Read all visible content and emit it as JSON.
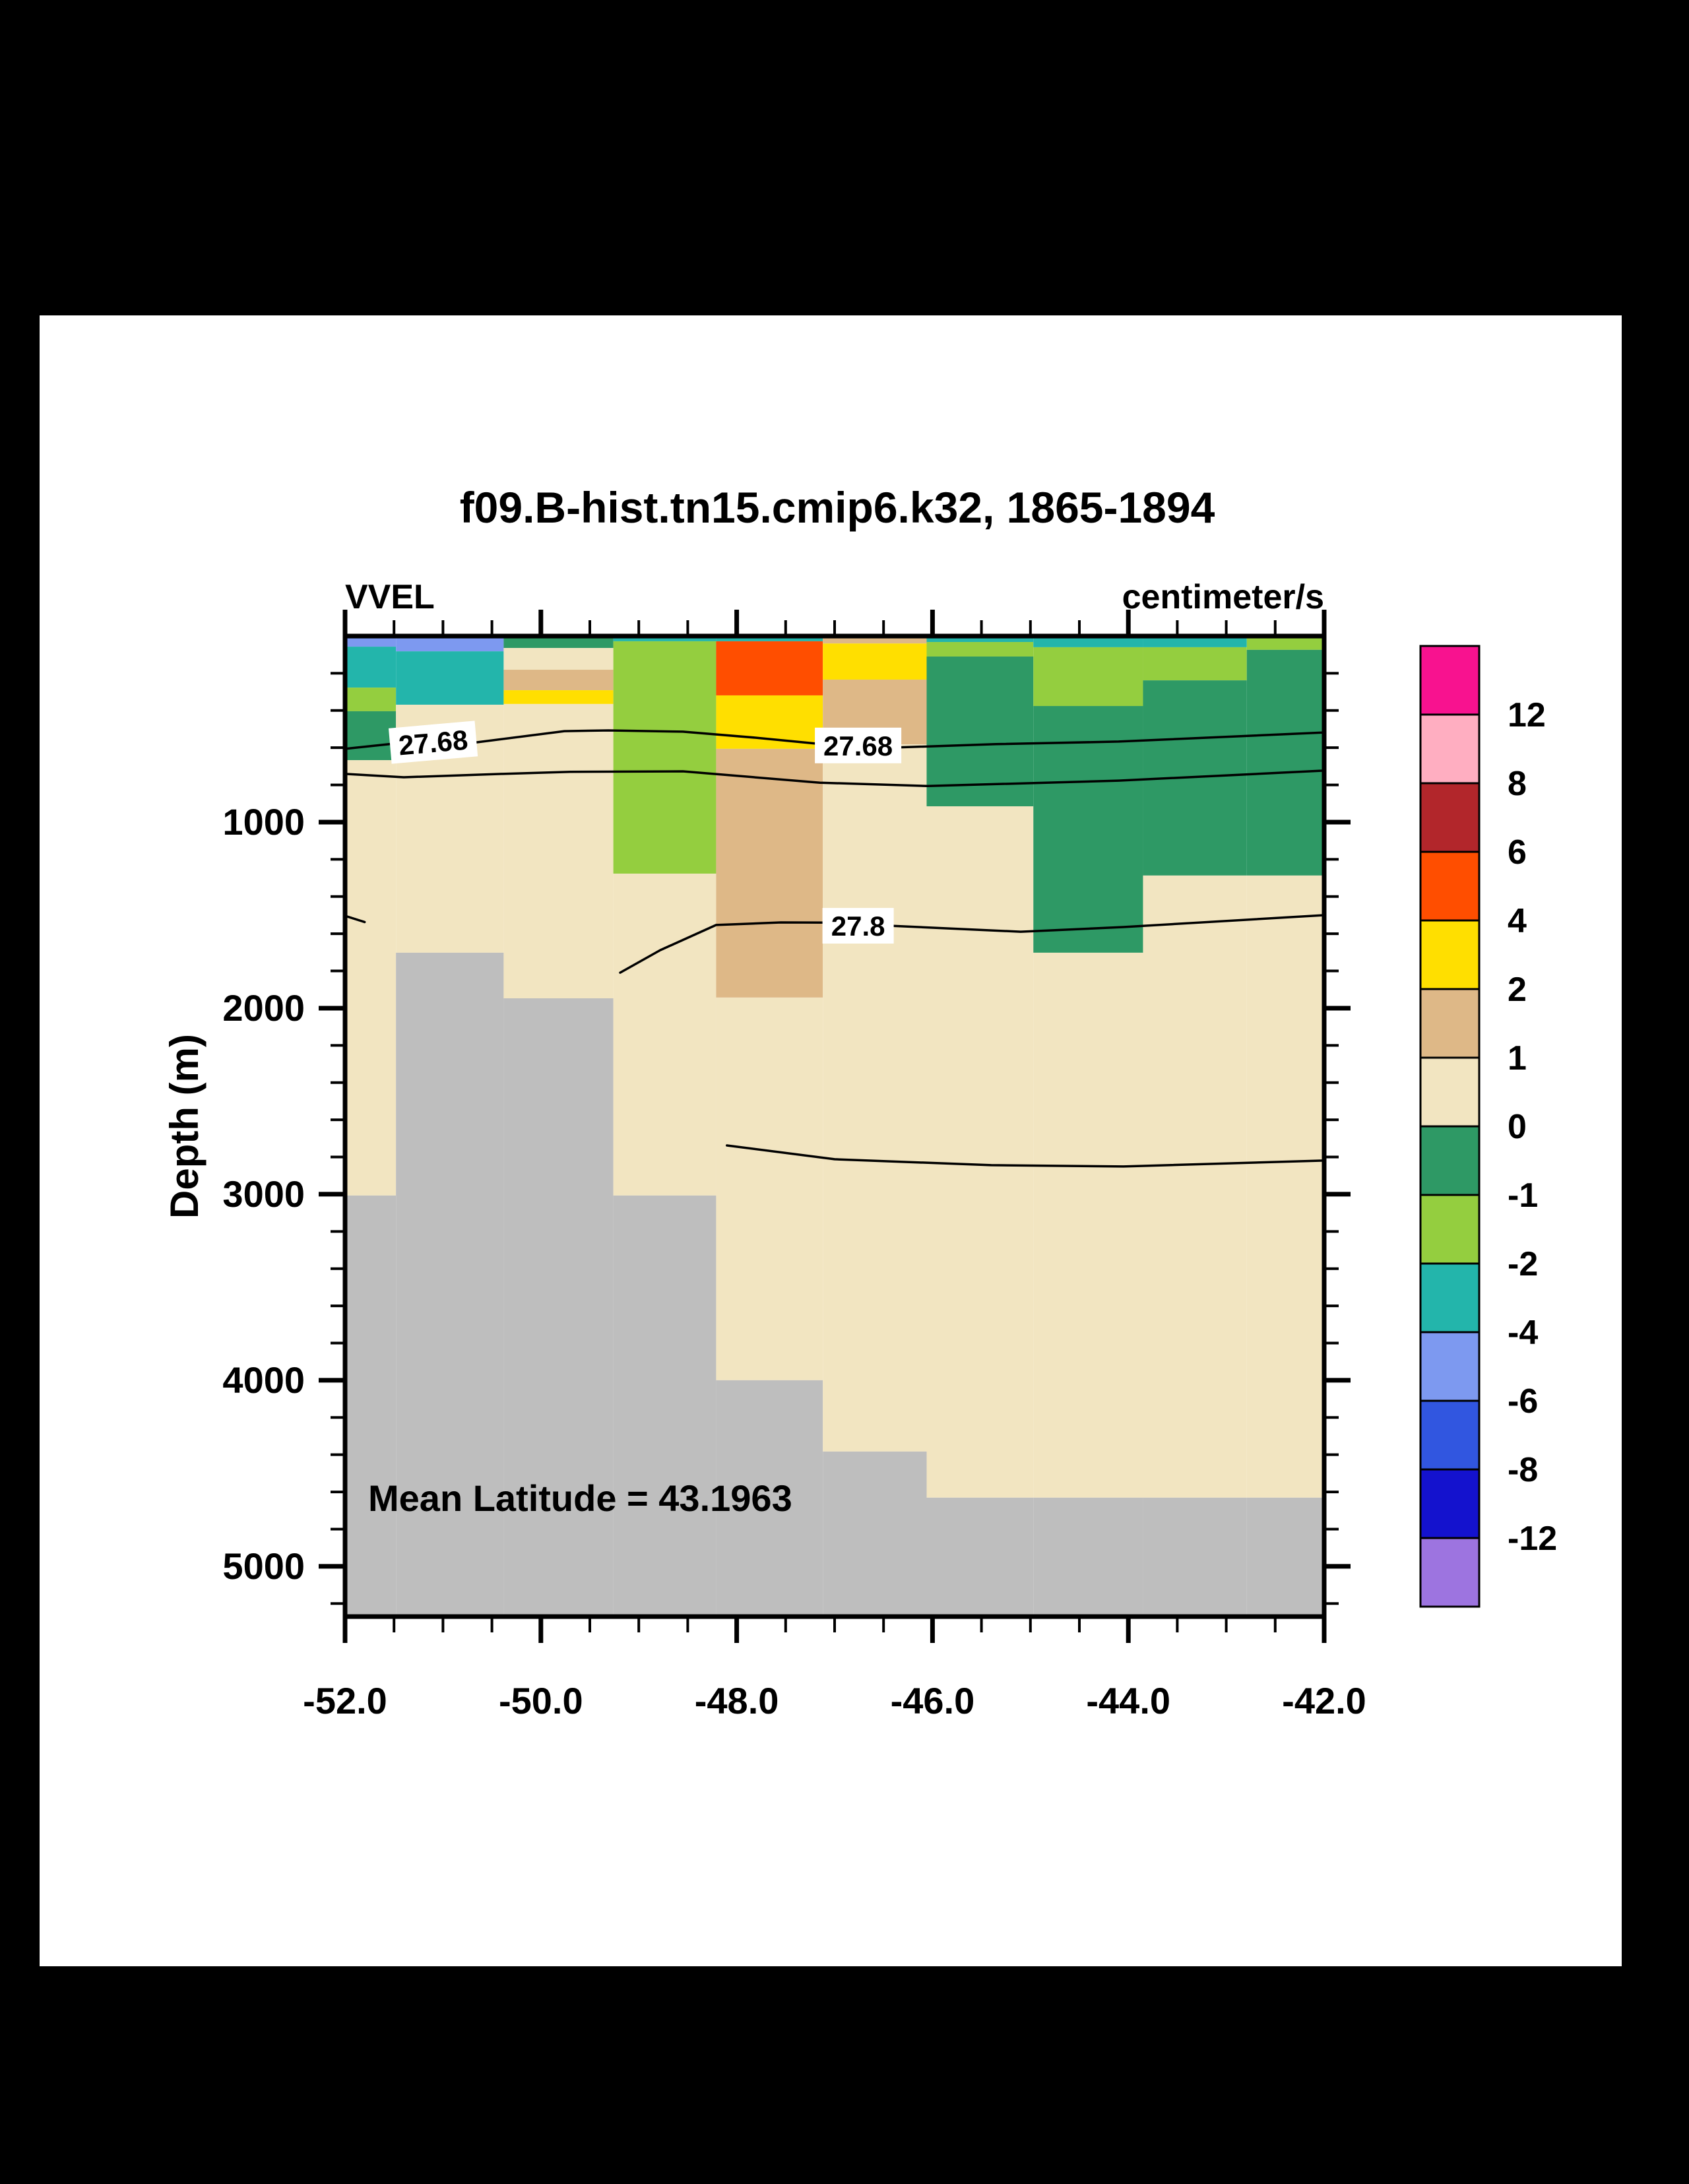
{
  "page": {
    "background_color": "#000000",
    "paper_color": "#ffffff"
  },
  "chart_data": {
    "type": "heatmap",
    "title": "f09.B-hist.tn15.cmip6.k32, 1865-1894",
    "left_label": "VVEL",
    "right_label": "centimeter/s",
    "ylabel": "Depth (m)",
    "annotation": "Mean Latitude = 43.1963",
    "xlim": [
      -52.0,
      -42.0
    ],
    "ylim": [
      0,
      5270
    ],
    "x_major_ticks": [
      -52.0,
      -50.0,
      -48.0,
      -46.0,
      -44.0,
      -42.0
    ],
    "x_tick_labels": [
      "-52.0",
      "-50.0",
      "-48.0",
      "-46.0",
      "-44.0",
      "-42.0"
    ],
    "x_minor_step": 0.5,
    "y_major_ticks": [
      1000,
      2000,
      3000,
      4000,
      5000
    ],
    "y_tick_labels": [
      "1000",
      "2000",
      "3000",
      "4000",
      "5000"
    ],
    "y_minor_step": 200,
    "grid": false,
    "palette": {
      "magenta": "#f8128f",
      "pink": "#ffaec1",
      "darkred": "#b2262b",
      "or": "#ff4e00",
      "yl": "#ffdf00",
      "tn": "#deb887",
      "cr": "#f2e5c1",
      "sg": "#2e9965",
      "yg": "#94ce3f",
      "tl": "#23b5ab",
      "cf": "#7d99f0",
      "blue": "#3156e0",
      "darkblue": "#1412ce",
      "purple": "#9d74e0",
      "land": "#bebebe"
    },
    "colorbar": {
      "position": "right",
      "block_colors_top_to_bottom": [
        "magenta",
        "pink",
        "darkred",
        "or",
        "yl",
        "tn",
        "cr",
        "sg",
        "yg",
        "tl",
        "cf",
        "blue",
        "darkblue",
        "purple"
      ],
      "boundary_labels_top_to_bottom": [
        "12",
        "8",
        "6",
        "4",
        "2",
        "1",
        "0",
        "-1",
        "-2",
        "-4",
        "-6",
        "-8",
        "-12"
      ]
    },
    "columns": [
      {
        "x0": -52.0,
        "x1": -51.48,
        "cells": [
          {
            "c": "cf",
            "d0": 0,
            "d1": 57
          },
          {
            "c": "tl",
            "d0": 57,
            "d1": 277
          },
          {
            "c": "yg",
            "d0": 277,
            "d1": 404
          },
          {
            "c": "sg",
            "d0": 404,
            "d1": 667
          },
          {
            "c": "cr",
            "d0": 667,
            "d1": 3007
          },
          {
            "c": "land",
            "d0": 3007,
            "d1": 5270
          }
        ]
      },
      {
        "x0": -51.48,
        "x1": -50.38,
        "cells": [
          {
            "c": "cf",
            "d0": 0,
            "d1": 82
          },
          {
            "c": "tl",
            "d0": 82,
            "d1": 369
          },
          {
            "c": "cr",
            "d0": 369,
            "d1": 1702
          },
          {
            "c": "land",
            "d0": 1702,
            "d1": 5270
          }
        ]
      },
      {
        "x0": -50.38,
        "x1": -49.26,
        "cells": [
          {
            "c": "sg",
            "d0": 0,
            "d1": 64
          },
          {
            "c": "cr",
            "d0": 64,
            "d1": 181
          },
          {
            "c": "tn",
            "d0": 181,
            "d1": 291
          },
          {
            "c": "yl",
            "d0": 291,
            "d1": 365
          },
          {
            "c": "cr",
            "d0": 365,
            "d1": 1947
          },
          {
            "c": "land",
            "d0": 1947,
            "d1": 5270
          }
        ]
      },
      {
        "x0": -49.26,
        "x1": -48.21,
        "cells": [
          {
            "c": "tl",
            "d0": 0,
            "d1": 28
          },
          {
            "c": "yg",
            "d0": 28,
            "d1": 1277
          },
          {
            "c": "cr",
            "d0": 1277,
            "d1": 3007
          },
          {
            "c": "land",
            "d0": 3007,
            "d1": 5270
          }
        ]
      },
      {
        "x0": -48.21,
        "x1": -47.12,
        "cells": [
          {
            "c": "tl",
            "d0": 0,
            "d1": 28
          },
          {
            "c": "or",
            "d0": 28,
            "d1": 319
          },
          {
            "c": "yl",
            "d0": 319,
            "d1": 606
          },
          {
            "c": "tn",
            "d0": 606,
            "d1": 1943
          },
          {
            "c": "cr",
            "d0": 1943,
            "d1": 4000
          },
          {
            "c": "land",
            "d0": 4000,
            "d1": 5270
          }
        ]
      },
      {
        "x0": -47.12,
        "x1": -46.06,
        "cells": [
          {
            "c": "tn",
            "d0": 0,
            "d1": 40
          },
          {
            "c": "yl",
            "d0": 40,
            "d1": 234
          },
          {
            "c": "tn",
            "d0": 234,
            "d1": 582
          },
          {
            "c": "cr",
            "d0": 582,
            "d1": 4383
          },
          {
            "c": "land",
            "d0": 4383,
            "d1": 5270
          }
        ]
      },
      {
        "x0": -46.06,
        "x1": -44.97,
        "cells": [
          {
            "c": "tl",
            "d0": 0,
            "d1": 32
          },
          {
            "c": "yg",
            "d0": 32,
            "d1": 110
          },
          {
            "c": "sg",
            "d0": 110,
            "d1": 915
          },
          {
            "c": "cr",
            "d0": 915,
            "d1": 4631
          },
          {
            "c": "land",
            "d0": 4631,
            "d1": 5270
          }
        ]
      },
      {
        "x0": -44.97,
        "x1": -43.85,
        "cells": [
          {
            "c": "tl",
            "d0": 0,
            "d1": 60
          },
          {
            "c": "yg",
            "d0": 60,
            "d1": 376
          },
          {
            "c": "sg",
            "d0": 376,
            "d1": 1702
          },
          {
            "c": "cr",
            "d0": 1702,
            "d1": 4631
          },
          {
            "c": "land",
            "d0": 4631,
            "d1": 5270
          }
        ]
      },
      {
        "x0": -43.85,
        "x1": -42.79,
        "cells": [
          {
            "c": "tl",
            "d0": 0,
            "d1": 60
          },
          {
            "c": "yg",
            "d0": 60,
            "d1": 238
          },
          {
            "c": "sg",
            "d0": 238,
            "d1": 1287
          },
          {
            "c": "cr",
            "d0": 1287,
            "d1": 4631
          },
          {
            "c": "land",
            "d0": 4631,
            "d1": 5270
          }
        ]
      },
      {
        "x0": -42.79,
        "x1": -42.0,
        "cells": [
          {
            "c": "yg",
            "d0": 0,
            "d1": 74
          },
          {
            "c": "sg",
            "d0": 74,
            "d1": 1287
          },
          {
            "c": "cr",
            "d0": 1287,
            "d1": 4631
          },
          {
            "c": "land",
            "d0": 4631,
            "d1": 5270
          }
        ]
      }
    ],
    "contours": [
      {
        "value": "27.68",
        "segments": [
          [
            [
              -52.0,
              606
            ],
            [
              -51.5,
              578
            ],
            [
              -50.7,
              574
            ],
            [
              -49.76,
              511
            ],
            [
              -49.31,
              507
            ],
            [
              -48.55,
              514
            ],
            [
              -47.81,
              546
            ],
            [
              -47.15,
              580
            ],
            [
              -46.76,
              590
            ],
            [
              -46.38,
              599
            ],
            [
              -45.35,
              581
            ],
            [
              -44.1,
              567
            ],
            [
              -42.0,
              518
            ]
          ]
        ],
        "labels": [
          {
            "text": "27.68",
            "x": -51.1,
            "depth": 571,
            "rotate": -5
          },
          {
            "text": "27.68",
            "x": -46.76,
            "depth": 588,
            "rotate": 0
          }
        ]
      },
      {
        "value": "",
        "segments": [
          [
            [
              -52.0,
              741
            ],
            [
              -51.4,
              759
            ],
            [
              -50.4,
              741
            ],
            [
              -49.7,
              730
            ],
            [
              -48.55,
              727
            ],
            [
              -47.15,
              788
            ],
            [
              -46.05,
              806
            ],
            [
              -44.1,
              777
            ],
            [
              -42.0,
              723
            ]
          ]
        ],
        "labels": []
      },
      {
        "value": "27.8",
        "segments": [
          [
            [
              -52.0,
              1504
            ],
            [
              -51.8,
              1537
            ]
          ],
          [
            [
              -49.19,
              1809
            ],
            [
              -48.78,
              1688
            ],
            [
              -48.21,
              1553
            ],
            [
              -47.55,
              1539
            ],
            [
              -47.08,
              1540
            ],
            [
              -46.44,
              1557
            ],
            [
              -45.1,
              1589
            ],
            [
              -44.05,
              1564
            ],
            [
              -42.0,
              1500
            ]
          ]
        ],
        "labels": [
          {
            "text": "27.8",
            "x": -46.76,
            "depth": 1557,
            "rotate": 0
          }
        ]
      },
      {
        "value": "",
        "segments": [
          [
            [
              -48.1,
              2738
            ],
            [
              -47.0,
              2812
            ],
            [
              -45.4,
              2844
            ],
            [
              -44.05,
              2851
            ],
            [
              -42.0,
              2819
            ]
          ]
        ],
        "labels": []
      }
    ]
  }
}
